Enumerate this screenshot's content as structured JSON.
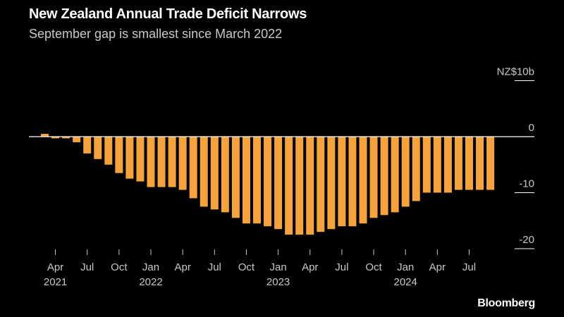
{
  "chart_data": {
    "type": "bar",
    "title": "New Zealand Annual Trade Deficit Narrows",
    "subtitle": "September gap is smallest since March 2022",
    "unit": "NZ$10b",
    "source": "Bloomberg",
    "ylim": [
      -20,
      10
    ],
    "yticks": [
      {
        "value": 10,
        "label": "NZ$10b"
      },
      {
        "value": 0,
        "label": "0"
      },
      {
        "value": -10,
        "label": "-10"
      },
      {
        "value": -20,
        "label": "-20"
      }
    ],
    "categories": [
      "2021-03",
      "2021-04",
      "2021-05",
      "2021-06",
      "2021-07",
      "2021-08",
      "2021-09",
      "2021-10",
      "2021-11",
      "2021-12",
      "2022-01",
      "2022-02",
      "2022-03",
      "2022-04",
      "2022-05",
      "2022-06",
      "2022-07",
      "2022-08",
      "2022-09",
      "2022-10",
      "2022-11",
      "2022-12",
      "2023-01",
      "2023-02",
      "2023-03",
      "2023-04",
      "2023-05",
      "2023-06",
      "2023-07",
      "2023-08",
      "2023-09",
      "2023-10",
      "2023-11",
      "2023-12",
      "2024-01",
      "2024-02",
      "2024-03",
      "2024-04",
      "2024-05",
      "2024-06",
      "2024-07",
      "2024-08",
      "2024-09"
    ],
    "values": [
      0.5,
      -0.3,
      -0.3,
      -1.0,
      -3.0,
      -4.0,
      -5.0,
      -6.5,
      -7.5,
      -8.0,
      -9.0,
      -9.0,
      -9.0,
      -9.5,
      -11.0,
      -12.5,
      -13.0,
      -13.5,
      -14.5,
      -15.5,
      -15.5,
      -16.0,
      -16.5,
      -17.5,
      -17.5,
      -17.5,
      -17.0,
      -16.5,
      -16.0,
      -16.0,
      -15.5,
      -14.5,
      -14.0,
      -13.5,
      -12.5,
      -11.5,
      -10.0,
      -10.0,
      -10.0,
      -9.5,
      -9.5,
      -9.5,
      -9.5
    ],
    "xticks": [
      {
        "index": 1,
        "label": "Apr",
        "year": "2021"
      },
      {
        "index": 4,
        "label": "Jul",
        "year": ""
      },
      {
        "index": 7,
        "label": "Oct",
        "year": ""
      },
      {
        "index": 10,
        "label": "Jan",
        "year": "2022"
      },
      {
        "index": 13,
        "label": "Apr",
        "year": ""
      },
      {
        "index": 16,
        "label": "Jul",
        "year": ""
      },
      {
        "index": 19,
        "label": "Oct",
        "year": ""
      },
      {
        "index": 22,
        "label": "Jan",
        "year": "2023"
      },
      {
        "index": 25,
        "label": "Apr",
        "year": ""
      },
      {
        "index": 28,
        "label": "Jul",
        "year": ""
      },
      {
        "index": 31,
        "label": "Oct",
        "year": ""
      },
      {
        "index": 34,
        "label": "Jan",
        "year": "2024"
      },
      {
        "index": 37,
        "label": "Apr",
        "year": ""
      },
      {
        "index": 40,
        "label": "Jul",
        "year": ""
      }
    ],
    "bar_color": "#f5a33a",
    "grid": false,
    "legend": "none"
  }
}
